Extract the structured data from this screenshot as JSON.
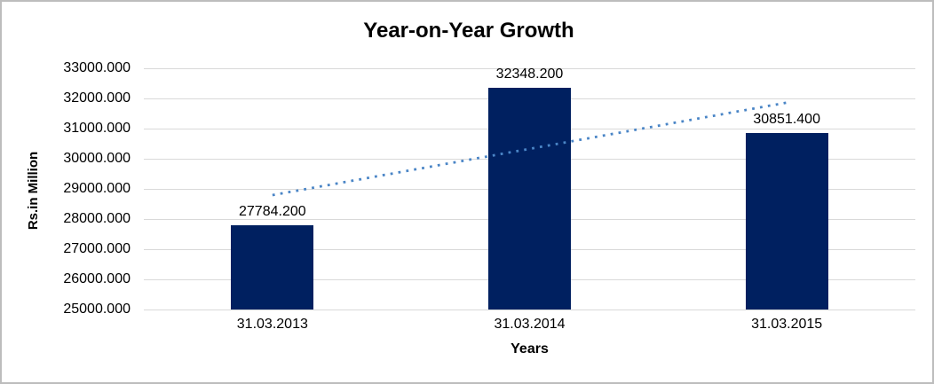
{
  "chart_data": {
    "type": "bar",
    "title": "Year-on-Year Growth",
    "categories": [
      "31.03.2013",
      "31.03.2014",
      "31.03.2015"
    ],
    "values": [
      27784.2,
      32348.2,
      30851.4
    ],
    "data_labels": [
      "27784.200",
      "32348.200",
      "30851.400"
    ],
    "xlabel": "Years",
    "ylabel": "Rs.in Million",
    "ylim": [
      25000,
      33000
    ],
    "ytick_step": 1000,
    "ytick_labels": [
      "25000.000",
      "26000.000",
      "27000.000",
      "28000.000",
      "29000.000",
      "30000.000",
      "31000.000",
      "32000.000",
      "33000.000"
    ],
    "grid": true,
    "legend_position": "none",
    "trendline": {
      "type": "linear",
      "style": "dotted"
    },
    "colors": {
      "bar": "#002060",
      "trendline": "#4A85C6",
      "gridline": "#d9d9d9",
      "text": "#000000",
      "frame_border": "#bdbdbd"
    }
  }
}
